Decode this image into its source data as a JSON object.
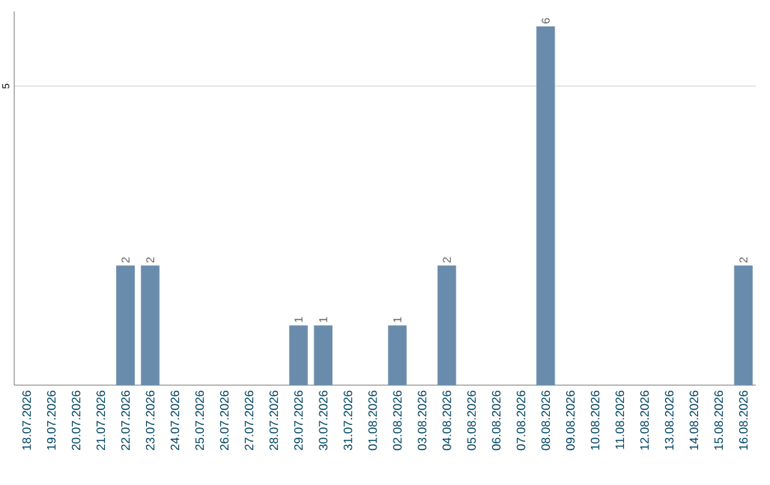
{
  "chart_data": {
    "type": "bar",
    "categories": [
      "18.07.2026",
      "19.07.2026",
      "20.07.2026",
      "21.07.2026",
      "22.07.2026",
      "23.07.2026",
      "24.07.2026",
      "25.07.2026",
      "26.07.2026",
      "27.07.2026",
      "28.07.2026",
      "29.07.2026",
      "30.07.2026",
      "31.07.2026",
      "01.08.2026",
      "02.08.2026",
      "03.08.2026",
      "04.08.2026",
      "05.08.2026",
      "06.08.2026",
      "07.08.2026",
      "08.08.2026",
      "09.08.2026",
      "10.08.2026",
      "11.08.2026",
      "12.08.2026",
      "13.08.2026",
      "14.08.2026",
      "15.08.2026",
      "16.08.2026"
    ],
    "values": [
      0,
      0,
      0,
      0,
      2,
      2,
      0,
      0,
      0,
      0,
      0,
      1,
      1,
      0,
      0,
      1,
      0,
      2,
      0,
      0,
      0,
      6,
      0,
      0,
      0,
      0,
      0,
      0,
      0,
      2
    ],
    "value_labels": [
      null,
      null,
      null,
      null,
      "2",
      "2",
      null,
      null,
      null,
      null,
      null,
      "1",
      "1",
      null,
      null,
      "1",
      null,
      "2",
      null,
      null,
      null,
      "6",
      null,
      null,
      null,
      null,
      null,
      null,
      null,
      "2"
    ],
    "color": "#6a8cac",
    "ylim": [
      0,
      6.25
    ],
    "yticks": [
      5
    ],
    "grid": "y"
  }
}
